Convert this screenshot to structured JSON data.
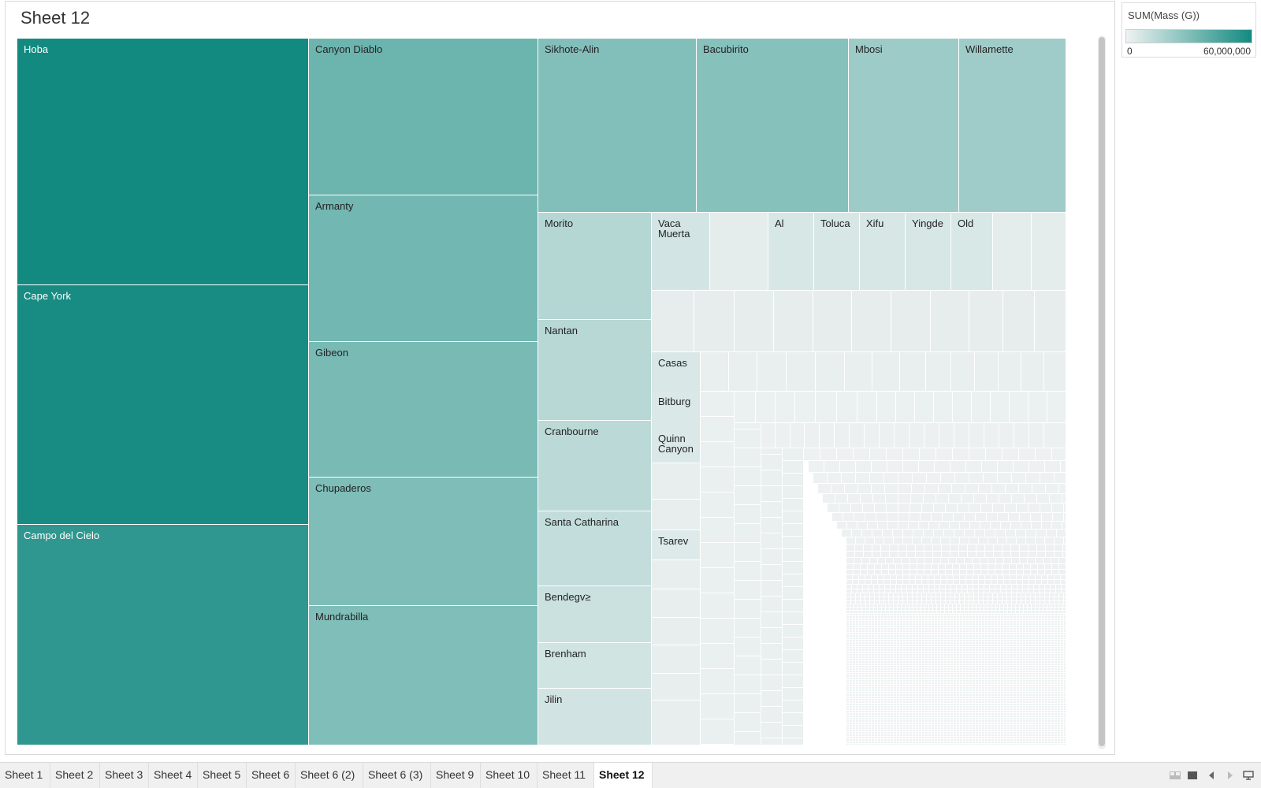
{
  "sheet": {
    "title": "Sheet 12"
  },
  "legend": {
    "title": "SUM(Mass (G))",
    "min_label": "0",
    "max_label": "60,000,000",
    "color_low": "#eef2f2",
    "color_high": "#138a80"
  },
  "tabs": [
    {
      "label": "Sheet 1"
    },
    {
      "label": "Sheet 2"
    },
    {
      "label": "Sheet 3"
    },
    {
      "label": "Sheet 4"
    },
    {
      "label": "Sheet 5"
    },
    {
      "label": "Sheet 6"
    },
    {
      "label": "Sheet 6 (2)"
    },
    {
      "label": "Sheet 6 (3)"
    },
    {
      "label": "Sheet 9"
    },
    {
      "label": "Sheet 10"
    },
    {
      "label": "Sheet 11"
    },
    {
      "label": "Sheet 12",
      "active": true
    }
  ],
  "toolbar_icons": [
    "grid-view-icon",
    "fullscreen-icon",
    "prev-sheet-icon",
    "next-sheet-icon",
    "presentation-icon"
  ],
  "chart_data": {
    "type": "treemap",
    "measure": "SUM(Mass (G))",
    "color_range": [
      0,
      60000000
    ],
    "items": [
      {
        "name": "Hoba",
        "value": 60000000
      },
      {
        "name": "Cape York",
        "value": 58200000
      },
      {
        "name": "Campo del Cielo",
        "value": 50000000
      },
      {
        "name": "Canyon Diablo",
        "value": 30000000
      },
      {
        "name": "Armanty",
        "value": 28000000
      },
      {
        "name": "Gibeon",
        "value": 26000000
      },
      {
        "name": "Chupaderos",
        "value": 24300000
      },
      {
        "name": "Mundrabilla",
        "value": 24000000
      },
      {
        "name": "Sikhote-Alin",
        "value": 23000000
      },
      {
        "name": "Bacubirito",
        "value": 22000000
      },
      {
        "name": "Mbosi",
        "value": 16000000
      },
      {
        "name": "Willamette",
        "value": 15500000
      },
      {
        "name": "Morito",
        "value": 10100000
      },
      {
        "name": "Nantan",
        "value": 9500000
      },
      {
        "name": "Cranbourne",
        "value": 8600000
      },
      {
        "name": "Santa Catharina",
        "value": 7000000
      },
      {
        "name": "Bendegv≥",
        "value": 5360000
      },
      {
        "name": "Brenham",
        "value": 4300000
      },
      {
        "name": "Jilin",
        "value": 4000000
      },
      {
        "name": "Vaca Muerta",
        "value": 3830000
      },
      {
        "name": "Al",
        "value": 3000000
      },
      {
        "name": "Toluca",
        "value": 3000000
      },
      {
        "name": "Xifu",
        "value": 3000000
      },
      {
        "name": "Yingde",
        "value": 3000000
      },
      {
        "name": "Old",
        "value": 2800000
      },
      {
        "name": "Casas",
        "value": 2700000
      },
      {
        "name": "Bitburg",
        "value": 2500000
      },
      {
        "name": "Quinn Canyon",
        "value": 2500000
      },
      {
        "name": "Tsarev",
        "value": 2000000
      }
    ]
  }
}
